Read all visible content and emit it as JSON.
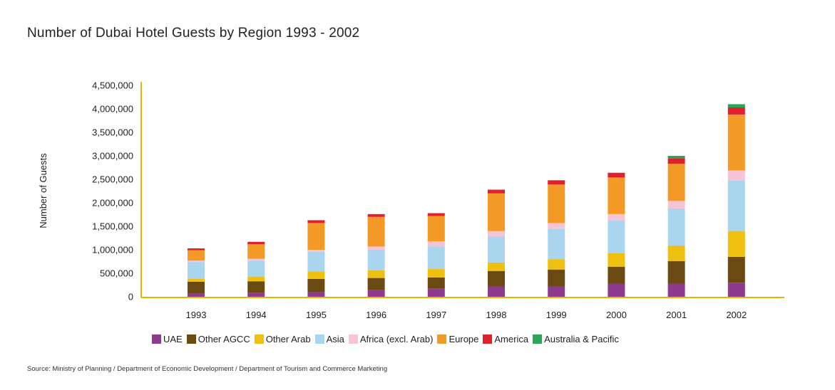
{
  "chart_data": {
    "type": "bar",
    "stacked": true,
    "title": "Number of Dubai Hotel Guests by Region 1993 - 2002",
    "xlabel": "",
    "ylabel": "Number of Guests",
    "ylim": [
      0,
      4500000
    ],
    "yticks": [
      0,
      500000,
      1000000,
      1500000,
      2000000,
      2500000,
      3000000,
      3500000,
      4000000,
      4500000
    ],
    "ytick_labels": [
      "0",
      "500,000",
      "1,000,000",
      "1,500,000",
      "2,000,000",
      "2,500,000",
      "3,000,000",
      "3,500,000",
      "4,000,000",
      "4,500,000"
    ],
    "categories": [
      "1993",
      "1994",
      "1995",
      "1996",
      "1997",
      "1998",
      "1999",
      "2000",
      "2001",
      "2002"
    ],
    "series": [
      {
        "name": "UAE",
        "color": "#8e3a8e",
        "values": [
          70000,
          80000,
          100000,
          140000,
          170000,
          220000,
          220000,
          280000,
          280000,
          300000
        ]
      },
      {
        "name": "Other AGCC",
        "color": "#6b4a12",
        "values": [
          250000,
          250000,
          280000,
          260000,
          240000,
          330000,
          360000,
          360000,
          480000,
          550000
        ]
      },
      {
        "name": "Other Arab",
        "color": "#f0c010",
        "values": [
          60000,
          100000,
          160000,
          160000,
          180000,
          180000,
          220000,
          290000,
          330000,
          550000
        ]
      },
      {
        "name": "Asia",
        "color": "#a9d5ee",
        "values": [
          360000,
          340000,
          420000,
          440000,
          480000,
          550000,
          640000,
          690000,
          790000,
          1070000
        ]
      },
      {
        "name": "Africa (excl. Arab)",
        "color": "#f7c3d6",
        "values": [
          30000,
          40000,
          40000,
          70000,
          110000,
          120000,
          130000,
          140000,
          160000,
          220000
        ]
      },
      {
        "name": "Europe",
        "color": "#f39a26",
        "values": [
          220000,
          310000,
          570000,
          630000,
          540000,
          800000,
          820000,
          780000,
          790000,
          1190000
        ]
      },
      {
        "name": "America",
        "color": "#e0202c",
        "values": [
          40000,
          50000,
          60000,
          60000,
          60000,
          80000,
          90000,
          100000,
          120000,
          150000
        ]
      },
      {
        "name": "Australia & Pacific",
        "color": "#2aa654",
        "values": [
          0,
          0,
          0,
          0,
          0,
          0,
          0,
          0,
          50000,
          70000
        ]
      }
    ],
    "axis_color": "#e5b700",
    "grid": false,
    "legend_position": "bottom"
  },
  "source_text": "Source: Ministry of Planning / Department of Economic Development / Department of Tourism and Commerce Marketing"
}
